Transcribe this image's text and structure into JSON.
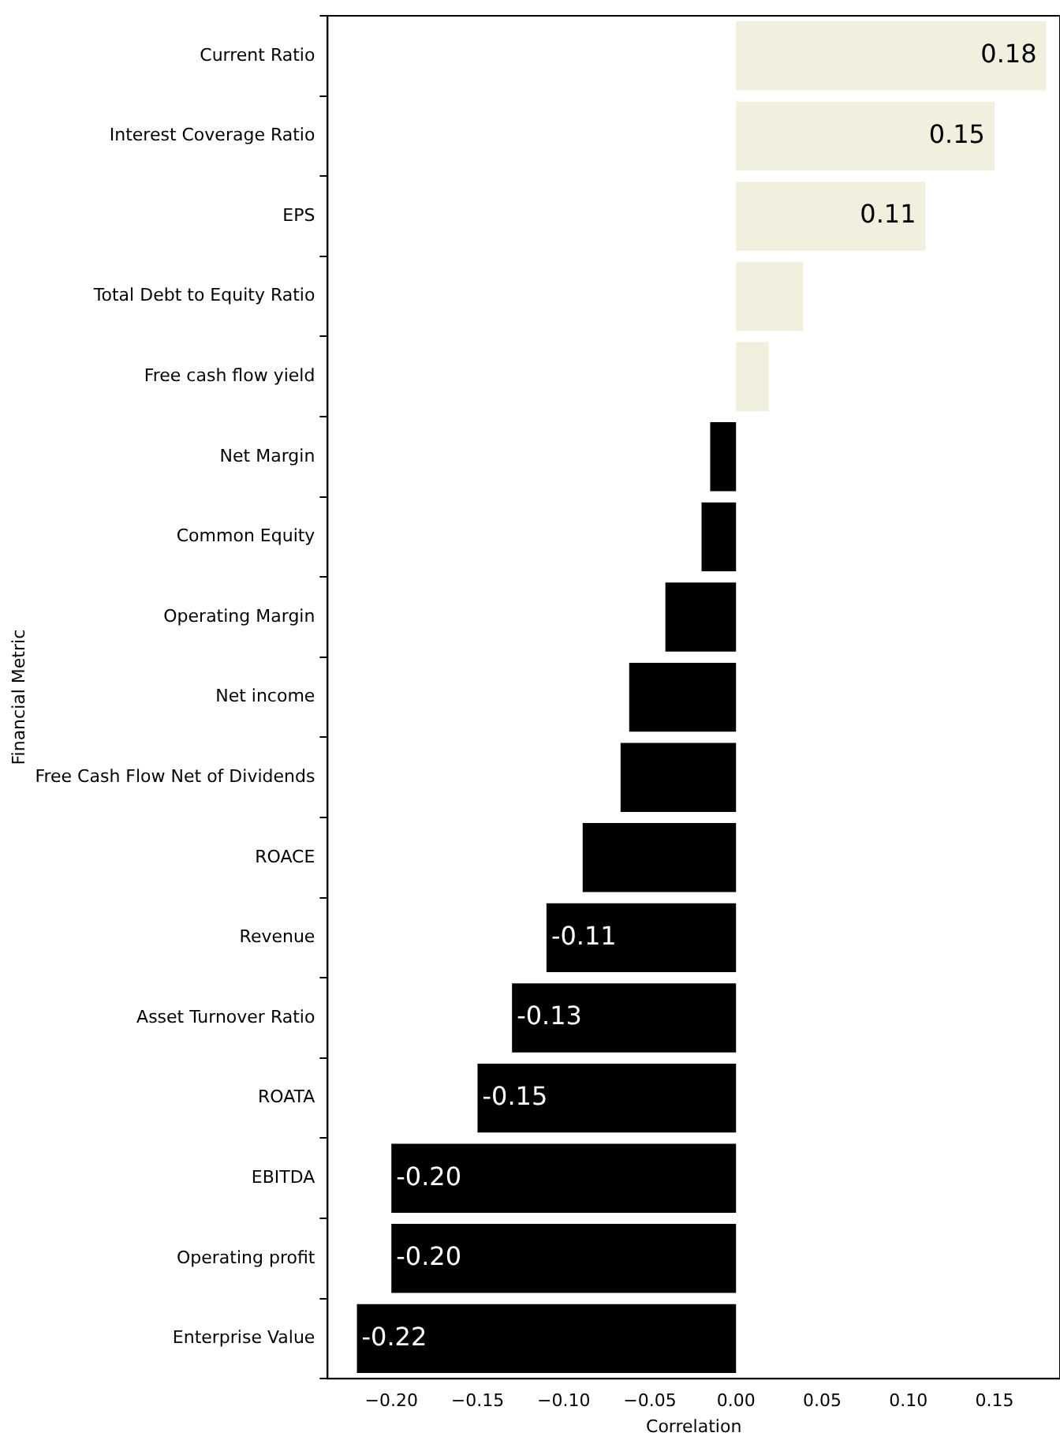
{
  "chart_data": {
    "type": "bar",
    "orientation": "horizontal",
    "xlabel": "Correlation",
    "ylabel": "Financial Metric",
    "categories": [
      "Current Ratio",
      "Interest Coverage Ratio",
      "EPS",
      "Total Debt to Equity Ratio",
      "Free cash flow yield",
      "Net Margin",
      "Common Equity",
      "Operating Margin",
      "Net income",
      "Free Cash Flow Net of Dividends",
      "ROACE",
      "Revenue",
      "Asset Turnover Ratio",
      "ROATA",
      "EBITDA",
      "Operating profit",
      "Enterprise Value"
    ],
    "values": [
      0.18,
      0.15,
      0.11,
      0.039,
      0.019,
      -0.015,
      -0.02,
      -0.041,
      -0.062,
      -0.067,
      -0.089,
      -0.11,
      -0.13,
      -0.15,
      -0.2,
      -0.2,
      -0.22
    ],
    "value_labels": [
      "0.18",
      "0.15",
      "0.11",
      null,
      null,
      null,
      null,
      null,
      null,
      null,
      null,
      "-0.11",
      "-0.13",
      "-0.15",
      "-0.20",
      "-0.20",
      "-0.22"
    ],
    "colors": [
      "#f1f0de",
      "#f1f0de",
      "#f1f0de",
      "#f1f0de",
      "#f1f0de",
      "#000000",
      "#000000",
      "#000000",
      "#000000",
      "#000000",
      "#000000",
      "#000000",
      "#000000",
      "#000000",
      "#000000",
      "#000000",
      "#000000"
    ],
    "xlim": [
      -0.237,
      0.188
    ],
    "xticks": [
      {
        "value": -0.2,
        "label": "−0.20"
      },
      {
        "value": -0.15,
        "label": "−0.15"
      },
      {
        "value": -0.1,
        "label": "−0.10"
      },
      {
        "value": -0.05,
        "label": "−0.05"
      },
      {
        "value": 0,
        "label": "0.00"
      },
      {
        "value": 0.05,
        "label": "0.05"
      },
      {
        "value": 0.1,
        "label": "0.10"
      },
      {
        "value": 0.15,
        "label": "0.15"
      }
    ],
    "grid": false,
    "legend": false
  }
}
